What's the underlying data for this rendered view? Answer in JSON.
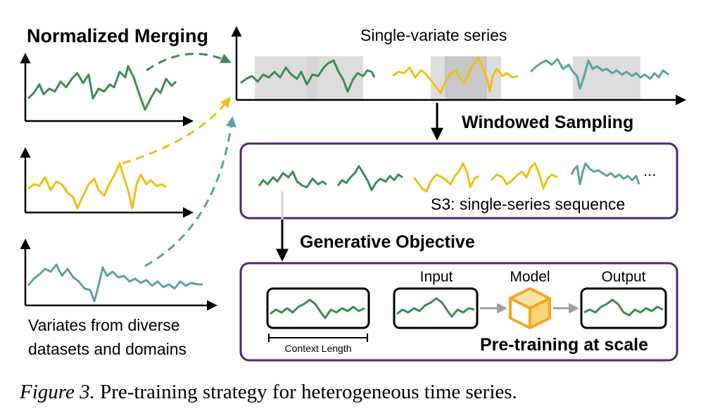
{
  "headings": {
    "normalized_merging": "Normalized Merging",
    "single_variate_series": "Single-variate series",
    "windowed_sampling": "Windowed Sampling",
    "generative_objective": "Generative Objective",
    "pretraining_at_scale": "Pre-training at scale"
  },
  "labels": {
    "s3_sequence": "S3: single-series sequence",
    "variates_line1": "Variates from diverse",
    "variates_line2": "datasets and domains",
    "ellipsis": "...",
    "input": "Input",
    "model": "Model",
    "output": "Output",
    "context_length": "Context Length"
  },
  "caption": {
    "figure_label": "Figure 3.",
    "text": " Pre-training strategy for heterogeneous time series."
  },
  "colors": {
    "green": "#3d8a58",
    "yellow": "#f0bf12",
    "teal": "#5aa39a",
    "purple": "#4a2a6e",
    "gray_window": "#d4d4d4",
    "arrow_gray": "#9e9e9e",
    "cube_orange": "#f5a623"
  }
}
